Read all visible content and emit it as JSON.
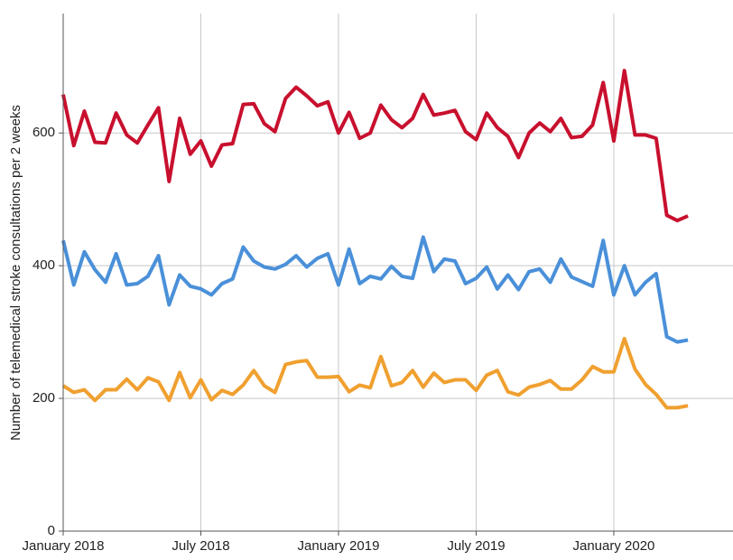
{
  "chart_data": {
    "type": "line",
    "y_label": "Number of telemedical stroke consultations per 2 weeks",
    "categories": [
      "January 2018",
      null,
      null,
      null,
      null,
      null,
      null,
      null,
      null,
      null,
      null,
      null,
      null,
      "July 2018",
      null,
      null,
      null,
      null,
      null,
      null,
      null,
      null,
      null,
      null,
      null,
      null,
      "January 2019",
      null,
      null,
      null,
      null,
      null,
      null,
      null,
      null,
      null,
      null,
      null,
      null,
      "July 2019",
      null,
      null,
      null,
      null,
      null,
      null,
      null,
      null,
      null,
      null,
      null,
      null,
      "January 2020",
      null,
      null,
      null,
      null,
      null,
      null,
      null
    ],
    "series": [
      {
        "color": "#c8102e",
        "values": [
          658,
          581,
          633,
          586,
          585,
          630,
          597,
          585,
          612,
          638,
          527,
          622,
          568,
          588,
          550,
          582,
          584,
          643,
          644,
          614,
          602,
          652,
          669,
          656,
          641,
          647,
          600,
          631,
          592,
          600,
          642,
          620,
          608,
          622,
          658,
          627,
          630,
          634,
          602,
          590,
          630,
          608,
          595,
          563,
          600,
          615,
          602,
          622,
          593,
          595,
          612,
          676,
          588,
          694,
          597,
          597,
          592,
          476,
          468,
          475
        ]
      },
      {
        "color": "#4a90d9",
        "values": [
          438,
          371,
          421,
          394,
          375,
          418,
          371,
          373,
          384,
          415,
          341,
          386,
          369,
          365,
          356,
          373,
          380,
          428,
          407,
          398,
          395,
          402,
          415,
          398,
          411,
          418,
          371,
          425,
          373,
          384,
          380,
          399,
          384,
          381,
          443,
          391,
          410,
          407,
          373,
          381,
          398,
          365,
          386,
          364,
          391,
          395,
          375,
          410,
          383,
          376,
          369,
          438,
          356,
          400,
          356,
          375,
          388,
          293,
          285,
          288
        ]
      },
      {
        "color": "#f0a030",
        "values": [
          219,
          209,
          213,
          197,
          213,
          213,
          229,
          213,
          231,
          225,
          197,
          239,
          201,
          228,
          198,
          212,
          206,
          220,
          242,
          219,
          209,
          251,
          255,
          257,
          232,
          232,
          233,
          210,
          220,
          216,
          263,
          219,
          224,
          242,
          217,
          238,
          224,
          228,
          228,
          212,
          235,
          242,
          210,
          205,
          217,
          221,
          227,
          214,
          214,
          228,
          248,
          240,
          240,
          290,
          244,
          221,
          206,
          186,
          186,
          189
        ]
      }
    ],
    "ylim": [
      0,
      780
    ],
    "yticks": [
      0,
      200,
      400,
      600
    ],
    "grid": true
  }
}
